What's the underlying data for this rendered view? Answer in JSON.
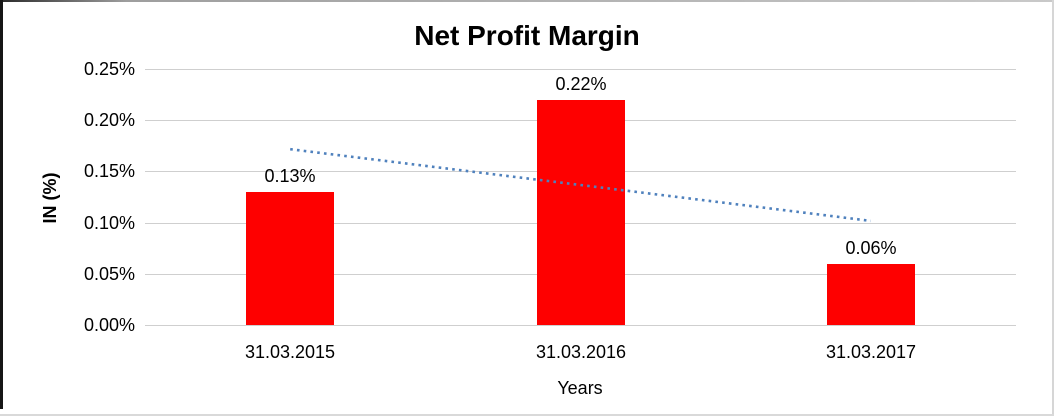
{
  "chart_data": {
    "type": "bar",
    "title": "Net Profit Margin",
    "xlabel": "Years",
    "ylabel": "IN (%)",
    "categories": [
      "31.03.2015",
      "31.03.2016",
      "31.03.2017"
    ],
    "values": [
      0.13,
      0.22,
      0.06
    ],
    "value_labels": [
      "0.13%",
      "0.22%",
      "0.06%"
    ],
    "yticks": [
      {
        "label": "0.25%",
        "value": 0.25
      },
      {
        "label": "0.20%",
        "value": 0.2
      },
      {
        "label": "0.15%",
        "value": 0.15
      },
      {
        "label": "0.10%",
        "value": 0.1
      },
      {
        "label": "0.05%",
        "value": 0.05
      },
      {
        "label": "0.00%",
        "value": 0.0
      }
    ],
    "ylim": [
      0,
      0.25
    ],
    "grid": true,
    "legend": "none",
    "bar_color": "#fe0000",
    "gridline_color": "#cfcfcf",
    "trendline": {
      "type": "linear",
      "style": "dotted",
      "color": "#4f81bd",
      "values": [
        0.1717,
        0.1367,
        0.1017
      ]
    }
  }
}
